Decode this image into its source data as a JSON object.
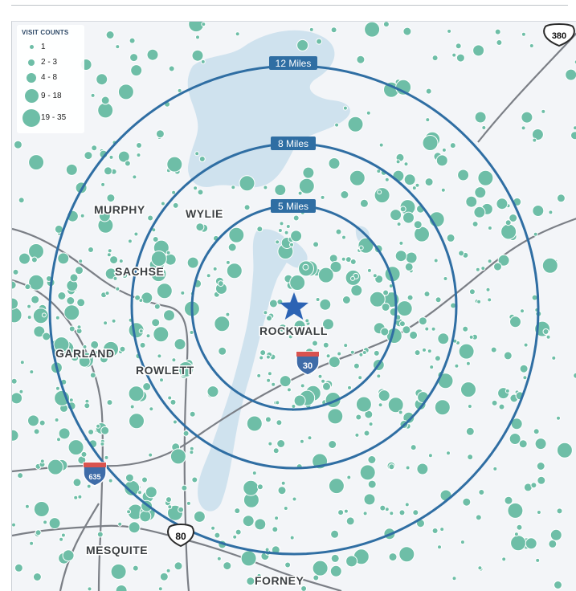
{
  "legend": {
    "title": "VISIT COUNTS",
    "items": [
      {
        "label": "1"
      },
      {
        "label": "2 - 3"
      },
      {
        "label": "4 - 8"
      },
      {
        "label": "9 - 18"
      },
      {
        "label": "19 - 35"
      }
    ]
  },
  "rings": [
    {
      "label": "12 Miles"
    },
    {
      "label": "8 Miles"
    },
    {
      "label": "5 Miles"
    }
  ],
  "cities": {
    "murphy": "MURPHY",
    "wylie": "WYLIE",
    "sachse": "SACHSE",
    "garland": "GARLAND",
    "rowlett": "ROWLETT",
    "rockwall": "ROCKWALL",
    "mesquite": "MESQUITE",
    "forney": "FORNEY"
  },
  "shields": {
    "i30": "30",
    "i635": "635",
    "us80": "80",
    "us380": "380"
  },
  "colors": {
    "ring": "#2f6ea3",
    "dot": "#6ebea7",
    "water": "#cfe2ee",
    "road": "#7b7f86",
    "star": "#2c63b4"
  }
}
